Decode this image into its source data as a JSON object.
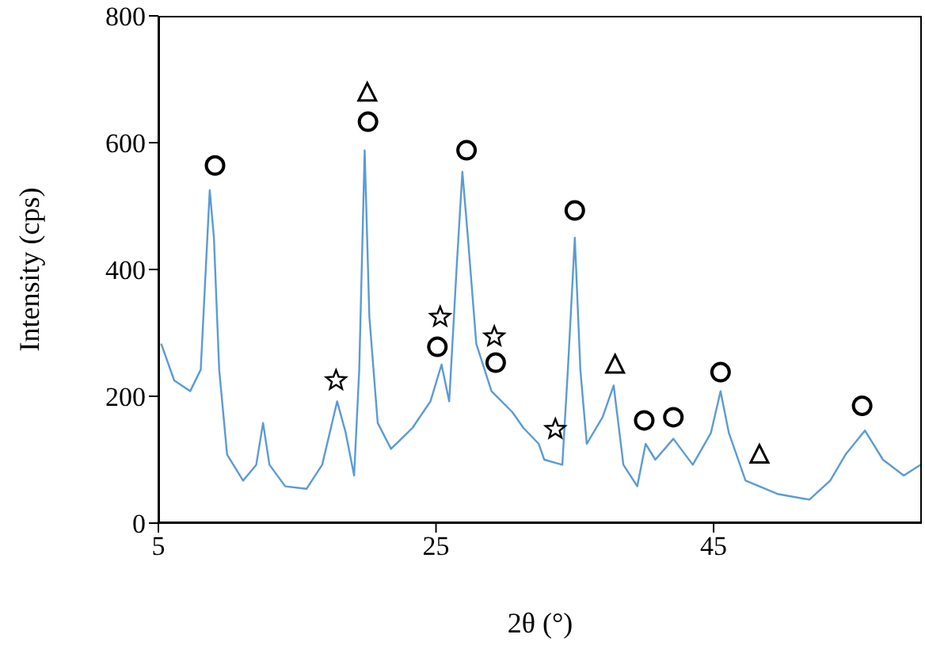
{
  "chart_data": {
    "type": "line",
    "xlabel": "2θ (°)",
    "ylabel": "Intensity (cps)",
    "xlim": [
      5,
      60
    ],
    "xticks": [
      5,
      25,
      45
    ],
    "ylim": [
      0,
      800
    ],
    "yticks": [
      0,
      200,
      400,
      600,
      800
    ],
    "grid": false,
    "series": [
      {
        "color": "#5b9bd5",
        "marker": "none",
        "x": [
          5.2,
          6.14,
          7.29,
          8.05,
          8.43,
          8.7,
          9.0,
          9.38,
          9.95,
          11.1,
          12.05,
          12.54,
          13.0,
          14.14,
          15.67,
          16.8,
          17.88,
          18.5,
          19.1,
          19.47,
          19.86,
          20.2,
          20.8,
          21.76,
          23.3,
          24.6,
          25.4,
          25.95,
          26.5,
          26.9,
          27.3,
          27.9,
          29.0,
          30.5,
          31.3,
          32.4,
          32.8,
          34.1,
          34.5,
          35.0,
          35.4,
          35.86,
          37.0,
          37.8,
          38.5,
          39.5,
          40.1,
          40.8,
          42.1,
          43.5,
          44.8,
          45.5,
          46.1,
          47.3,
          49.6,
          51.9,
          53.4,
          54.5,
          55.9,
          57.2,
          58.7,
          59.9
        ],
        "values": [
          283,
          225,
          208,
          242,
          408,
          525,
          450,
          242,
          108,
          67,
          92,
          158,
          92,
          58,
          54,
          92,
          192,
          142,
          75,
          242,
          588,
          325,
          158,
          117,
          150,
          192,
          250,
          192,
          408,
          554,
          450,
          283,
          208,
          175,
          150,
          125,
          100,
          92,
          242,
          450,
          242,
          125,
          167,
          217,
          92,
          58,
          125,
          100,
          133,
          92,
          142,
          208,
          142,
          67,
          46,
          37,
          67,
          108,
          146,
          100,
          75,
          92
        ]
      },
      {
        "type": "scatter",
        "color": "#000000",
        "marker": "circle",
        "x": [
          9.08,
          20.1,
          25.1,
          27.2,
          29.3,
          35.0,
          40.0,
          42.1,
          45.5,
          55.7
        ],
        "values": [
          564,
          633,
          278,
          588,
          253,
          493,
          162,
          167,
          238,
          185
        ]
      },
      {
        "type": "scatter",
        "color": "#000000",
        "marker": "triangle",
        "x": [
          20.05,
          37.9,
          48.3
        ],
        "values": [
          679,
          250,
          108
        ]
      },
      {
        "type": "scatter",
        "color": "#000000",
        "marker": "star",
        "x": [
          17.8,
          25.3,
          29.2,
          33.6
        ],
        "values": [
          225,
          325,
          294,
          148
        ]
      }
    ]
  }
}
